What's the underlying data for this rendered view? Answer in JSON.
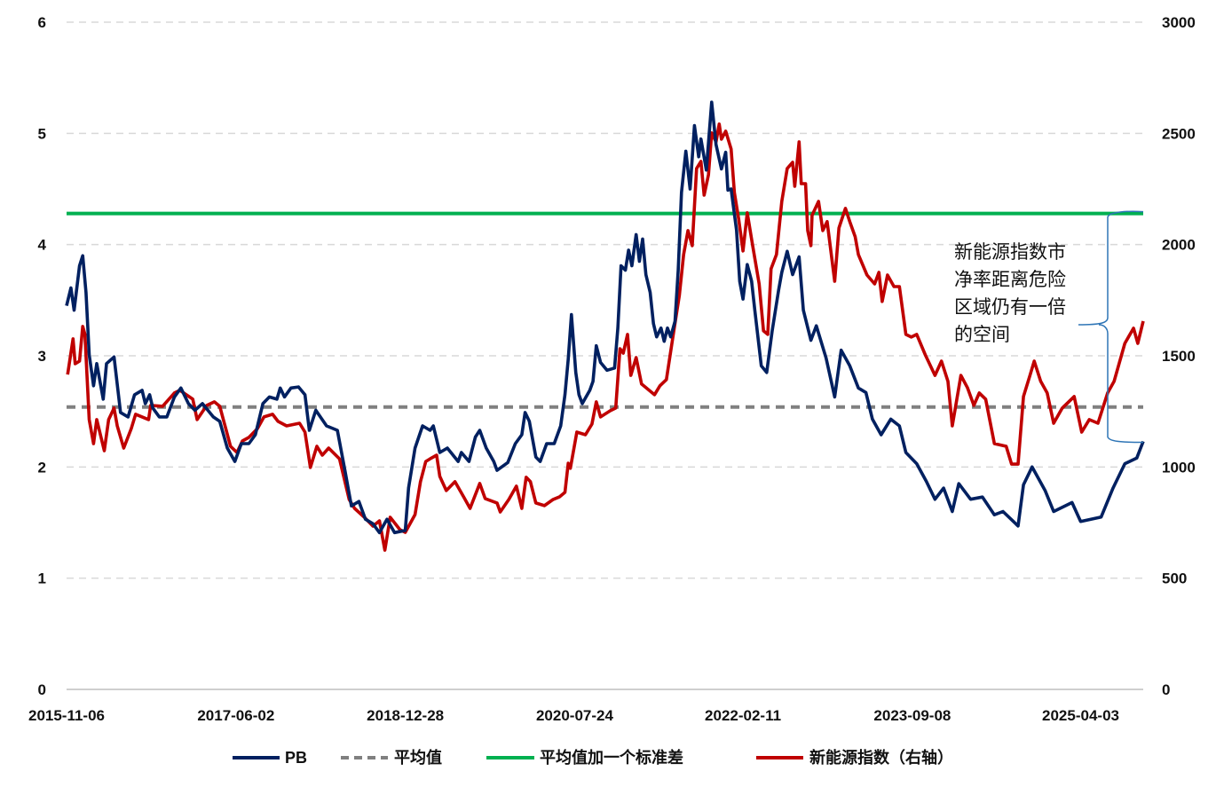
{
  "chart_data": {
    "type": "line",
    "title": "",
    "xlabel": "",
    "ylabel_left": "",
    "ylabel_right": "",
    "x_unit": "decimal year",
    "xlim": [
      2015.85,
      2025.83
    ],
    "ylim_left": [
      0,
      6
    ],
    "ylim_right": [
      0,
      3000
    ],
    "grid": true,
    "legend_position": "bottom",
    "x_ticks": [
      {
        "x": 2015.85,
        "label": "2015-11-06"
      },
      {
        "x": 2017.42,
        "label": "2017-06-02"
      },
      {
        "x": 2018.99,
        "label": "2018-12-28"
      },
      {
        "x": 2020.56,
        "label": "2020-07-24"
      },
      {
        "x": 2022.12,
        "label": "2022-02-11"
      },
      {
        "x": 2023.69,
        "label": "2023-09-08"
      },
      {
        "x": 2025.25,
        "label": "2025-04-03"
      }
    ],
    "y_ticks_left": [
      "0",
      "1",
      "2",
      "3",
      "4",
      "5",
      "6"
    ],
    "y_ticks_right": [
      "0",
      "500",
      "1000",
      "1500",
      "2000",
      "2500",
      "3000"
    ],
    "annotation": {
      "lines": [
        "新能源指数市",
        "净率距离危险",
        "区域仍有一倍",
        "的空间"
      ],
      "brace_from": 4.28,
      "brace_to": 2.23,
      "brace_color": "#2E75B6"
    },
    "series": [
      {
        "name": "PB",
        "axis": "left",
        "color": "#002060",
        "style": "solid",
        "x": [
          2015.85,
          2015.89,
          2015.92,
          2015.97,
          2016.0,
          2016.03,
          2016.06,
          2016.1,
          2016.13,
          2016.19,
          2016.22,
          2016.29,
          2016.35,
          2016.42,
          2016.48,
          2016.55,
          2016.58,
          2016.62,
          2016.65,
          2016.71,
          2016.78,
          2016.85,
          2016.91,
          2016.98,
          2017.04,
          2017.11,
          2017.21,
          2017.27,
          2017.34,
          2017.41,
          2017.47,
          2017.54,
          2017.6,
          2017.67,
          2017.73,
          2017.8,
          2017.83,
          2017.87,
          2017.93,
          2018.0,
          2018.06,
          2018.1,
          2018.16,
          2018.26,
          2018.36,
          2018.43,
          2018.49,
          2018.56,
          2018.62,
          2018.69,
          2018.75,
          2018.82,
          2018.89,
          2018.99,
          2019.02,
          2019.08,
          2019.15,
          2019.22,
          2019.25,
          2019.31,
          2019.38,
          2019.48,
          2019.51,
          2019.58,
          2019.64,
          2019.68,
          2019.74,
          2019.81,
          2019.84,
          2019.94,
          2020.01,
          2020.07,
          2020.1,
          2020.14,
          2020.2,
          2020.24,
          2020.3,
          2020.37,
          2020.43,
          2020.47,
          2020.5,
          2020.53,
          2020.57,
          2020.6,
          2020.63,
          2020.7,
          2020.73,
          2020.76,
          2020.8,
          2020.86,
          2020.93,
          2020.96,
          2020.99,
          2021.03,
          2021.06,
          2021.09,
          2021.13,
          2021.16,
          2021.19,
          2021.22,
          2021.26,
          2021.29,
          2021.32,
          2021.36,
          2021.39,
          2021.42,
          2021.45,
          2021.49,
          2021.52,
          2021.55,
          2021.59,
          2021.63,
          2021.67,
          2021.71,
          2021.73,
          2021.78,
          2021.83,
          2021.87,
          2021.92,
          2021.96,
          2021.98,
          2022.01,
          2022.06,
          2022.09,
          2022.12,
          2022.16,
          2022.2,
          2022.23,
          2022.29,
          2022.34,
          2022.39,
          2022.45,
          2022.48,
          2022.53,
          2022.58,
          2022.64,
          2022.68,
          2022.75,
          2022.8,
          2022.89,
          2022.97,
          2023.03,
          2023.11,
          2023.19,
          2023.26,
          2023.32,
          2023.4,
          2023.49,
          2023.57,
          2023.63,
          2023.73,
          2023.82,
          2023.9,
          2023.98,
          2024.06,
          2024.12,
          2024.23,
          2024.34,
          2024.45,
          2024.53,
          2024.67,
          2024.72,
          2024.8,
          2024.92,
          2025.0,
          2025.17,
          2025.25,
          2025.44,
          2025.55,
          2025.66,
          2025.77,
          2025.83
        ],
        "y": [
          3.45,
          3.61,
          3.41,
          3.81,
          3.9,
          3.57,
          3.01,
          2.73,
          2.93,
          2.61,
          2.93,
          2.99,
          2.49,
          2.45,
          2.65,
          2.69,
          2.57,
          2.65,
          2.53,
          2.45,
          2.45,
          2.63,
          2.71,
          2.57,
          2.51,
          2.57,
          2.45,
          2.41,
          2.17,
          2.05,
          2.21,
          2.21,
          2.29,
          2.57,
          2.63,
          2.61,
          2.71,
          2.63,
          2.71,
          2.72,
          2.65,
          2.33,
          2.51,
          2.37,
          2.33,
          1.97,
          1.65,
          1.69,
          1.53,
          1.49,
          1.41,
          1.53,
          1.41,
          1.43,
          1.81,
          2.17,
          2.37,
          2.33,
          2.37,
          2.13,
          2.17,
          2.05,
          2.13,
          2.05,
          2.27,
          2.33,
          2.17,
          2.05,
          1.97,
          2.04,
          2.21,
          2.29,
          2.49,
          2.41,
          2.09,
          2.05,
          2.21,
          2.21,
          2.37,
          2.65,
          2.97,
          3.37,
          2.85,
          2.65,
          2.57,
          2.69,
          2.77,
          3.09,
          2.94,
          2.87,
          2.89,
          3.25,
          3.81,
          3.77,
          3.95,
          3.81,
          4.09,
          3.85,
          4.05,
          3.73,
          3.57,
          3.29,
          3.17,
          3.25,
          3.13,
          3.25,
          3.17,
          3.31,
          3.77,
          4.47,
          4.84,
          4.5,
          5.07,
          4.79,
          4.95,
          4.67,
          5.28,
          4.9,
          4.68,
          4.83,
          4.49,
          4.5,
          4.13,
          3.67,
          3.51,
          3.82,
          3.67,
          3.41,
          2.91,
          2.85,
          3.22,
          3.59,
          3.75,
          3.94,
          3.73,
          3.89,
          3.41,
          3.14,
          3.27,
          2.98,
          2.63,
          3.05,
          2.91,
          2.71,
          2.67,
          2.43,
          2.29,
          2.43,
          2.37,
          2.13,
          2.03,
          1.87,
          1.71,
          1.81,
          1.6,
          1.85,
          1.71,
          1.73,
          1.57,
          1.6,
          1.47,
          1.84,
          2.0,
          1.79,
          1.6,
          1.68,
          1.51,
          1.55,
          1.81,
          2.03,
          2.08,
          2.23
        ]
      },
      {
        "name": "平均值",
        "axis": "left",
        "color": "#808080",
        "style": "dashed",
        "x": [
          2015.85,
          2025.83
        ],
        "y": [
          2.54,
          2.54
        ]
      },
      {
        "name": "平均值加一个标准差",
        "axis": "left",
        "color": "#00B050",
        "style": "solid",
        "x": [
          2015.85,
          2025.83
        ],
        "y": [
          4.28,
          4.28
        ]
      },
      {
        "name": "新能源指数（右轴）",
        "axis": "right",
        "color": "#C00000",
        "style": "solid",
        "x": [
          2015.86,
          2015.91,
          2015.93,
          2015.97,
          2016.0,
          2016.02,
          2016.06,
          2016.1,
          2016.13,
          2016.2,
          2016.24,
          2016.29,
          2016.32,
          2016.38,
          2016.45,
          2016.49,
          2016.61,
          2016.63,
          2016.74,
          2016.85,
          2016.9,
          2017.02,
          2017.06,
          2017.15,
          2017.22,
          2017.27,
          2017.37,
          2017.43,
          2017.48,
          2017.54,
          2017.62,
          2017.68,
          2017.76,
          2017.81,
          2017.89,
          2018.01,
          2018.06,
          2018.11,
          2018.17,
          2018.22,
          2018.28,
          2018.38,
          2018.47,
          2018.52,
          2018.61,
          2018.69,
          2018.75,
          2018.8,
          2018.85,
          2018.94,
          2018.99,
          2019.08,
          2019.13,
          2019.18,
          2019.22,
          2019.28,
          2019.31,
          2019.37,
          2019.45,
          2019.53,
          2019.59,
          2019.68,
          2019.73,
          2019.84,
          2019.87,
          2019.95,
          2020.02,
          2020.07,
          2020.11,
          2020.15,
          2020.2,
          2020.28,
          2020.36,
          2020.42,
          2020.47,
          2020.5,
          2020.52,
          2020.58,
          2020.66,
          2020.72,
          2020.76,
          2020.8,
          2020.89,
          2020.94,
          2020.98,
          2021.01,
          2021.05,
          2021.08,
          2021.13,
          2021.18,
          2021.3,
          2021.35,
          2021.41,
          2021.47,
          2021.53,
          2021.57,
          2021.61,
          2021.65,
          2021.69,
          2021.73,
          2021.76,
          2021.8,
          2021.83,
          2021.87,
          2021.9,
          2021.92,
          2021.96,
          2022.01,
          2022.04,
          2022.08,
          2022.12,
          2022.16,
          2022.21,
          2022.27,
          2022.31,
          2022.35,
          2022.38,
          2022.43,
          2022.48,
          2022.53,
          2022.58,
          2022.6,
          2022.64,
          2022.66,
          2022.7,
          2022.72,
          2022.75,
          2022.76,
          2022.82,
          2022.86,
          2022.9,
          2022.97,
          2023.01,
          2023.07,
          2023.11,
          2023.16,
          2023.19,
          2023.27,
          2023.34,
          2023.38,
          2023.41,
          2023.46,
          2023.52,
          2023.57,
          2023.63,
          2023.68,
          2023.73,
          2023.81,
          2023.9,
          2023.96,
          2024.02,
          2024.06,
          2024.14,
          2024.2,
          2024.26,
          2024.31,
          2024.37,
          2024.45,
          2024.56,
          2024.61,
          2024.67,
          2024.72,
          2024.78,
          2024.82,
          2024.88,
          2024.94,
          2025.0,
          2025.08,
          2025.19,
          2025.26,
          2025.33,
          2025.41,
          2025.5,
          2025.56,
          2025.66,
          2025.74,
          2025.78,
          2025.83
        ],
        "y": [
          1416,
          1576,
          1464,
          1476,
          1632,
          1596,
          1213,
          1105,
          1213,
          1073,
          1213,
          1265,
          1185,
          1085,
          1173,
          1237,
          1213,
          1277,
          1273,
          1333,
          1345,
          1305,
          1213,
          1277,
          1293,
          1273,
          1093,
          1065,
          1117,
          1133,
          1173,
          1225,
          1237,
          1205,
          1185,
          1197,
          1157,
          998,
          1093,
          1053,
          1085,
          1037,
          854,
          814,
          774,
          734,
          758,
          626,
          774,
          718,
          706,
          786,
          934,
          1025,
          1037,
          1053,
          958,
          894,
          934,
          866,
          814,
          926,
          858,
          838,
          798,
          854,
          914,
          814,
          954,
          934,
          838,
          826,
          854,
          866,
          886,
          1017,
          994,
          1157,
          1145,
          1193,
          1293,
          1225,
          1253,
          1265,
          1532,
          1512,
          1596,
          1412,
          1492,
          1373,
          1325,
          1365,
          1393,
          1584,
          1772,
          1955,
          2063,
          1995,
          2342,
          2374,
          2222,
          2314,
          2502,
          2462,
          2542,
          2474,
          2510,
          2430,
          2234,
          2115,
          1971,
          2143,
          1995,
          1823,
          1612,
          1596,
          1891,
          1955,
          2194,
          2342,
          2370,
          2262,
          2462,
          2274,
          2274,
          2063,
          1995,
          2131,
          2194,
          2063,
          2103,
          1835,
          2075,
          2163,
          2103,
          2035,
          1955,
          1863,
          1823,
          1875,
          1744,
          1863,
          1811,
          1811,
          1596,
          1584,
          1596,
          1504,
          1412,
          1476,
          1385,
          1185,
          1412,
          1357,
          1277,
          1333,
          1305,
          1105,
          1093,
          1013,
          1013,
          1317,
          1412,
          1476,
          1385,
          1333,
          1197,
          1265,
          1317,
          1157,
          1213,
          1197,
          1333,
          1385,
          1556,
          1624,
          1556,
          1656
        ]
      }
    ]
  }
}
